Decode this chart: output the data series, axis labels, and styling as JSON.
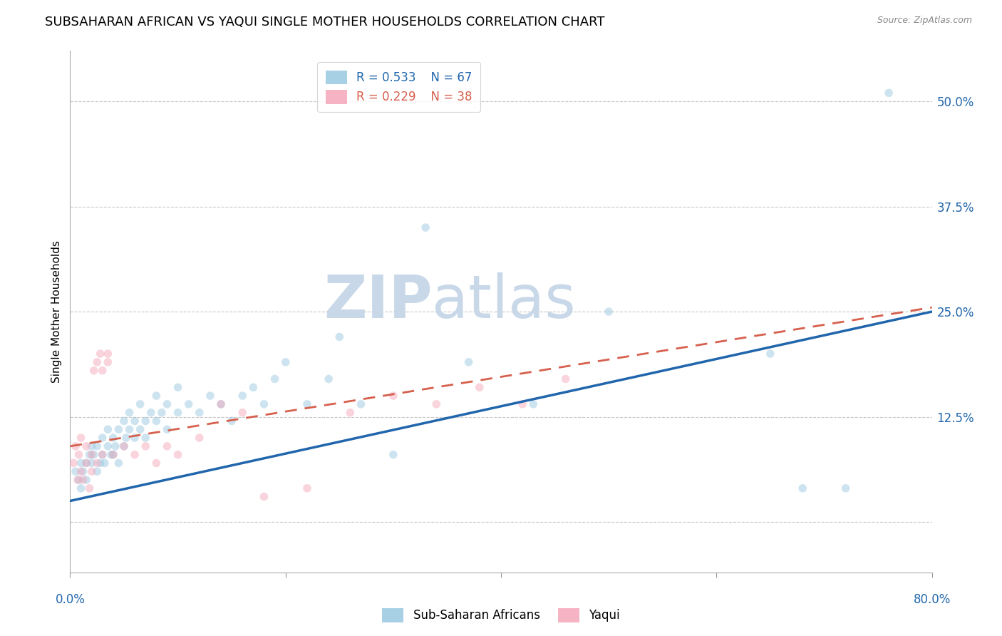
{
  "title": "SUBSAHARAN AFRICAN VS YAQUI SINGLE MOTHER HOUSEHOLDS CORRELATION CHART",
  "source": "Source: ZipAtlas.com",
  "ylabel": "Single Mother Households",
  "ytick_values": [
    0.0,
    0.125,
    0.25,
    0.375,
    0.5
  ],
  "ytick_labels": [
    "",
    "12.5%",
    "25.0%",
    "37.5%",
    "50.0%"
  ],
  "xlim": [
    0.0,
    0.8
  ],
  "ylim": [
    -0.06,
    0.56
  ],
  "legend_entries": [
    {
      "label": "Sub-Saharan Africans",
      "R": "0.533",
      "N": "67"
    },
    {
      "label": "Yaqui",
      "R": "0.229",
      "N": "38"
    }
  ],
  "blue_scatter_x": [
    0.005,
    0.008,
    0.01,
    0.01,
    0.012,
    0.015,
    0.015,
    0.018,
    0.02,
    0.02,
    0.022,
    0.025,
    0.025,
    0.028,
    0.03,
    0.03,
    0.032,
    0.035,
    0.035,
    0.038,
    0.04,
    0.04,
    0.042,
    0.045,
    0.045,
    0.05,
    0.05,
    0.052,
    0.055,
    0.055,
    0.06,
    0.06,
    0.065,
    0.065,
    0.07,
    0.07,
    0.075,
    0.08,
    0.08,
    0.085,
    0.09,
    0.09,
    0.1,
    0.1,
    0.11,
    0.12,
    0.13,
    0.14,
    0.15,
    0.16,
    0.17,
    0.18,
    0.19,
    0.2,
    0.22,
    0.24,
    0.25,
    0.27,
    0.3,
    0.33,
    0.37,
    0.43,
    0.5,
    0.65,
    0.68,
    0.72,
    0.76
  ],
  "blue_scatter_y": [
    0.06,
    0.05,
    0.07,
    0.04,
    0.06,
    0.07,
    0.05,
    0.08,
    0.07,
    0.09,
    0.08,
    0.06,
    0.09,
    0.07,
    0.08,
    0.1,
    0.07,
    0.09,
    0.11,
    0.08,
    0.1,
    0.08,
    0.09,
    0.11,
    0.07,
    0.09,
    0.12,
    0.1,
    0.11,
    0.13,
    0.1,
    0.12,
    0.11,
    0.14,
    0.12,
    0.1,
    0.13,
    0.12,
    0.15,
    0.13,
    0.14,
    0.11,
    0.13,
    0.16,
    0.14,
    0.13,
    0.15,
    0.14,
    0.12,
    0.15,
    0.16,
    0.14,
    0.17,
    0.19,
    0.14,
    0.17,
    0.22,
    0.14,
    0.08,
    0.35,
    0.19,
    0.14,
    0.25,
    0.2,
    0.04,
    0.04,
    0.51
  ],
  "pink_scatter_x": [
    0.003,
    0.005,
    0.007,
    0.008,
    0.01,
    0.01,
    0.012,
    0.015,
    0.015,
    0.018,
    0.02,
    0.02,
    0.022,
    0.025,
    0.025,
    0.028,
    0.03,
    0.03,
    0.035,
    0.035,
    0.04,
    0.05,
    0.06,
    0.07,
    0.08,
    0.09,
    0.1,
    0.12,
    0.14,
    0.16,
    0.18,
    0.22,
    0.26,
    0.3,
    0.34,
    0.38,
    0.42,
    0.46
  ],
  "pink_scatter_y": [
    0.07,
    0.09,
    0.05,
    0.08,
    0.06,
    0.1,
    0.05,
    0.07,
    0.09,
    0.04,
    0.06,
    0.08,
    0.18,
    0.19,
    0.07,
    0.2,
    0.08,
    0.18,
    0.2,
    0.19,
    0.08,
    0.09,
    0.08,
    0.09,
    0.07,
    0.09,
    0.08,
    0.1,
    0.14,
    0.13,
    0.03,
    0.04,
    0.13,
    0.15,
    0.14,
    0.16,
    0.14,
    0.17
  ],
  "blue_line_x": [
    0.0,
    0.8
  ],
  "blue_line_y": [
    0.025,
    0.25
  ],
  "pink_line_x": [
    0.0,
    0.8
  ],
  "pink_line_y": [
    0.09,
    0.255
  ],
  "scatter_size": 70,
  "scatter_alpha": 0.45,
  "blue_color": "#92c5de",
  "pink_color": "#f4a0b5",
  "blue_line_color": "#2166ac",
  "pink_line_color": "#d6604d",
  "background_color": "#ffffff",
  "grid_color": "#c8c8c8",
  "title_fontsize": 13,
  "axis_label_fontsize": 11,
  "tick_fontsize": 12,
  "watermark_zip_color": "#c8d8e8",
  "watermark_atlas_color": "#c8d8e8",
  "watermark_fontsize": 60
}
